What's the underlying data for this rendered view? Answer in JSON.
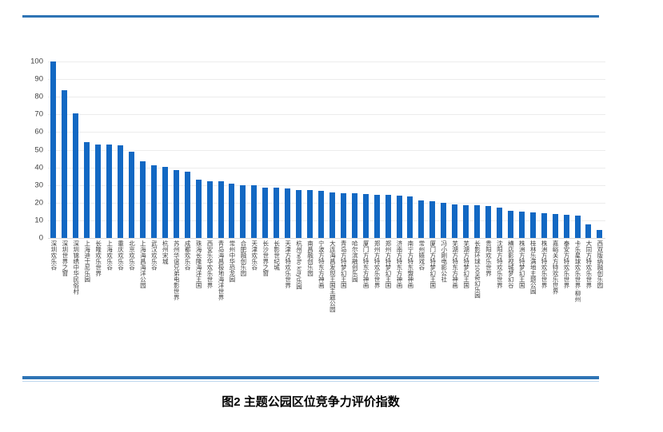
{
  "caption": "图2 主题公园区位竞争力评价指数",
  "colors": {
    "bar": "#1268c3",
    "rule": "#2e74b5",
    "rule_thin": "#bdd6ee",
    "gridline": "#ececec",
    "baseline": "#d9d9d9",
    "tick_text": "#404040",
    "label_text": "#3d3d3d"
  },
  "chart_data": {
    "type": "bar",
    "title": "",
    "xlabel": "",
    "ylabel": "",
    "ylim": [
      0,
      100
    ],
    "ytick_step": 10,
    "yticks": [
      0,
      10,
      20,
      30,
      40,
      50,
      60,
      70,
      80,
      90,
      100
    ],
    "grid": true,
    "legend": false,
    "categories": [
      "深圳欢乐谷",
      "深圳世界之窗",
      "深圳锦绣中华民俗村",
      "上海迪士尼乐园",
      "长隆欢乐世界",
      "上海欢乐谷",
      "重庆欢乐谷",
      "北京欢乐谷",
      "上海海昌海洋公园",
      "武汉欢乐谷",
      "杭州宋城",
      "苏州华谊兄弟电影世界",
      "成都欢乐谷",
      "珠海长隆海洋王国",
      "西安乐华欢乐世界",
      "青岛海昌极地海洋世界",
      "常州中华恐龙园",
      "合肥融创乐园",
      "天津欢乐谷",
      "长沙世界之窗",
      "长影世纪城",
      "天津方特欢乐世界",
      "杭州hello kitty乐园",
      "南昌融创乐园",
      "宁波方特东方神画",
      "大连海昌发现王国主题公园",
      "青岛方特梦幻王国",
      "哈尔滨融创乐园",
      "厦门方特东方神画",
      "郑州方特欢乐世界",
      "郑州方特梦幻王国",
      "济南方特东方神画",
      "南宁方特东盟神画",
      "常州嬉戏谷",
      "厦门方特梦幻王国",
      "冯小刚电影公社",
      "芜湖方特东方神画",
      "芜湖方特梦幻王国",
      "长影环球100奇幻乐园",
      "贵阳欢乐世界",
      "沈阳方特欢乐世界",
      "横店影视城梦幻谷",
      "株洲方特梦幻王国",
      "桂林乐满地主题公园",
      "株洲方特欢乐世界",
      "嘉峪关方特欢乐世界",
      "泰安方特欢乐世界",
      "卡乐星球欢乐世界·柳州",
      "大同方特欢乐世界",
      "西双版纳融创乐园"
    ],
    "values": [
      100,
      83.5,
      70.5,
      54.5,
      53,
      53,
      52.5,
      49,
      43.5,
      41,
      40.5,
      38.5,
      37.5,
      33,
      32,
      32,
      31,
      30,
      30,
      28.5,
      28.5,
      28,
      27,
      27,
      26.5,
      26,
      25.5,
      25.5,
      25,
      24.5,
      24.5,
      24,
      23.5,
      21.5,
      21,
      20,
      19,
      18.5,
      18.5,
      18,
      17,
      15.5,
      15,
      14.5,
      14,
      13.5,
      13,
      12.5,
      7.5,
      4.5
    ]
  }
}
